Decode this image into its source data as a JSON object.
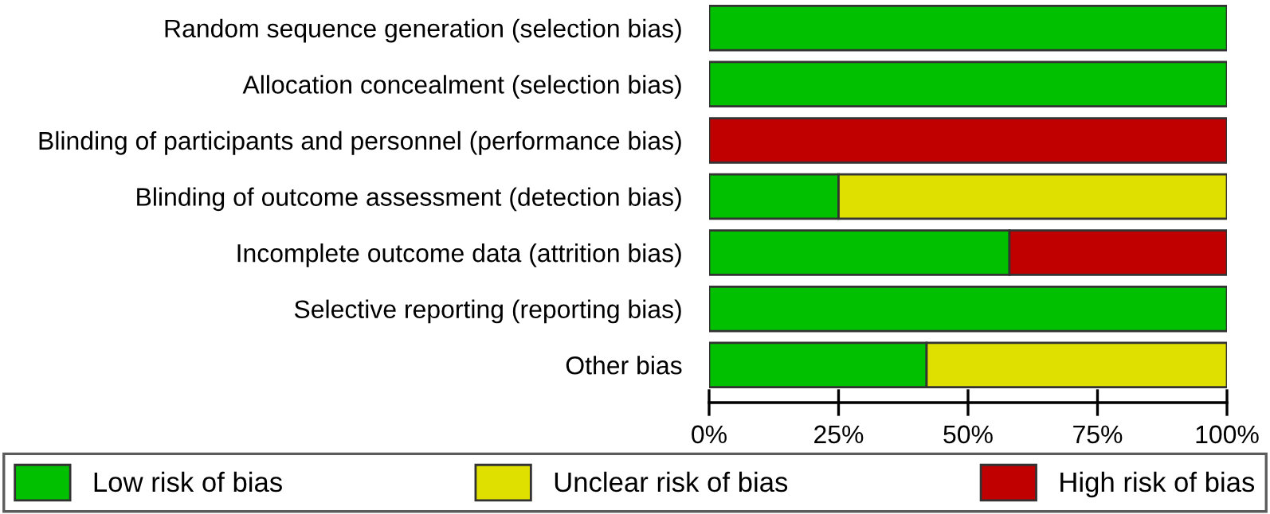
{
  "chart_data": {
    "type": "bar",
    "orientation": "horizontal",
    "stacked": true,
    "categories": [
      "Random sequence generation (selection bias)",
      "Allocation concealment (selection bias)",
      "Blinding of participants and personnel (performance bias)",
      "Blinding of outcome assessment (detection bias)",
      "Incomplete outcome data (attrition bias)",
      "Selective reporting (reporting bias)",
      "Other bias"
    ],
    "series": [
      {
        "name": "Low risk of bias",
        "color": "#00c000",
        "values": [
          100,
          100,
          0,
          25,
          58,
          100,
          42
        ]
      },
      {
        "name": "Unclear risk of bias",
        "color": "#e0e000",
        "values": [
          0,
          0,
          0,
          75,
          0,
          0,
          58
        ]
      },
      {
        "name": "High risk of bias",
        "color": "#c00000",
        "values": [
          0,
          0,
          100,
          0,
          42,
          0,
          0
        ]
      }
    ],
    "xlim": [
      0,
      100
    ],
    "xticks": [
      {
        "value": 0,
        "label": "0%"
      },
      {
        "value": 25,
        "label": "25%"
      },
      {
        "value": 50,
        "label": "50%"
      },
      {
        "value": 75,
        "label": "75%"
      },
      {
        "value": 100,
        "label": "100%"
      }
    ],
    "grid": false,
    "legend": "bottom"
  }
}
